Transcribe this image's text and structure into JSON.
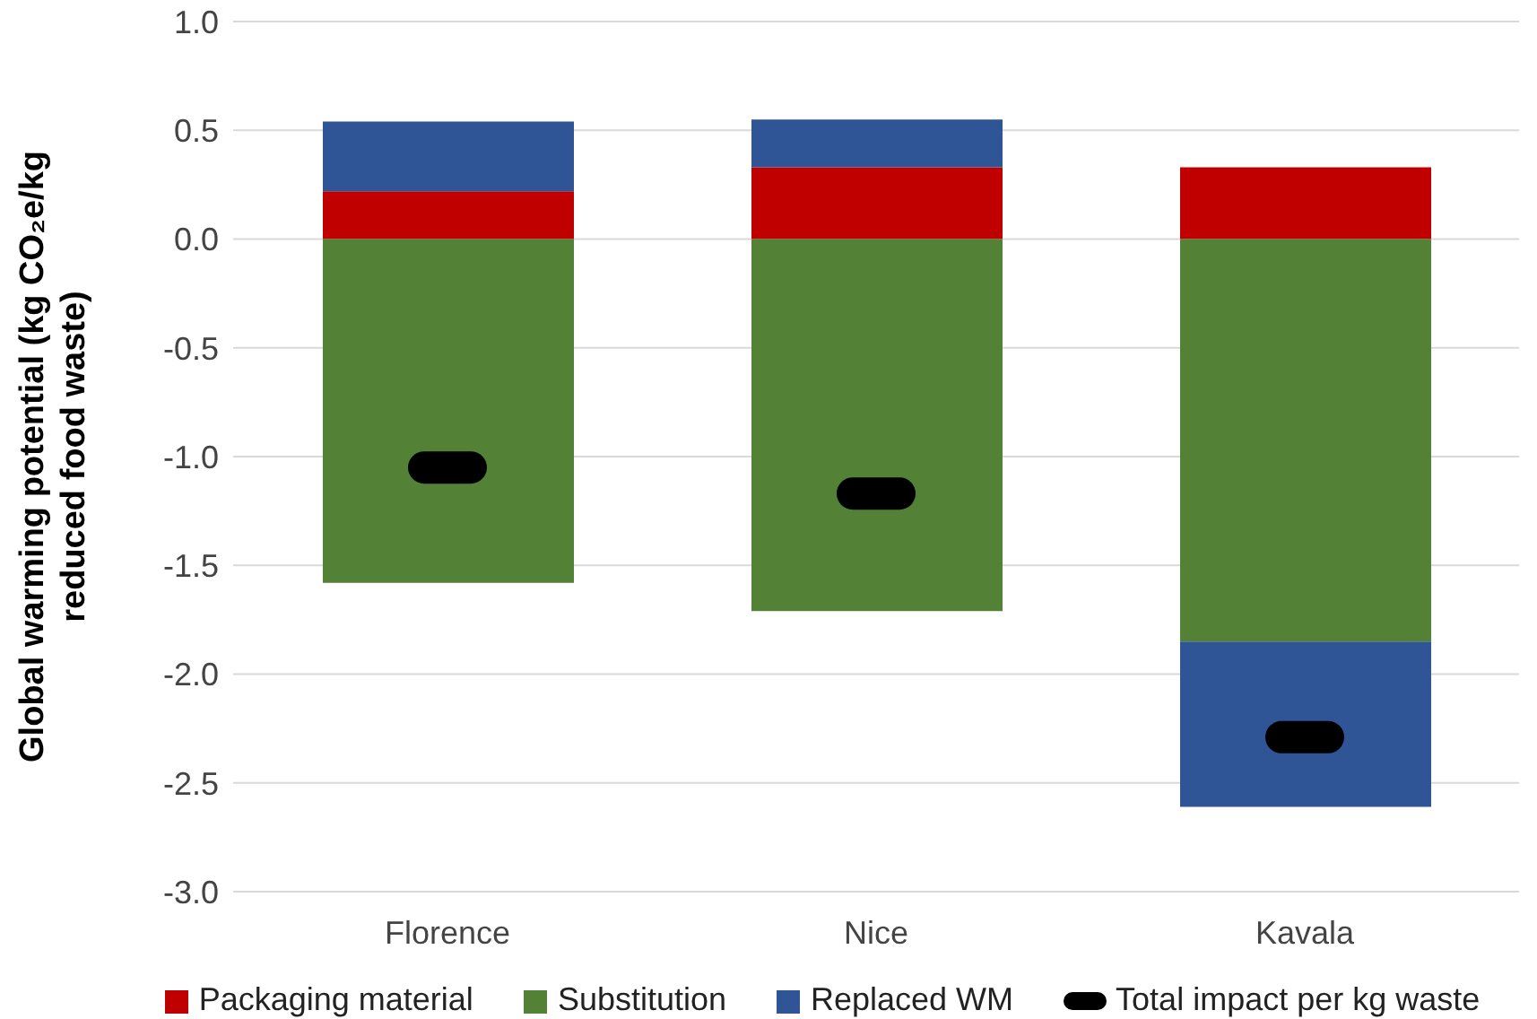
{
  "chart_data": {
    "type": "bar",
    "stacked": true,
    "ylabel": "Global warming potential (kg CO₂e/kg reduced food waste)",
    "categories": [
      "Florence",
      "Nice",
      "Kavala"
    ],
    "series": [
      {
        "name": "Packaging material",
        "color": "#c00000",
        "values": [
          0.22,
          0.33,
          0.33
        ]
      },
      {
        "name": "Substitution",
        "color": "#538135",
        "values": [
          -1.58,
          -1.71,
          -1.85
        ]
      },
      {
        "name": "Replaced WM",
        "color": "#2f5597",
        "values": [
          0.32,
          0.22,
          -0.76
        ]
      },
      {
        "name": "Total impact per kg waste",
        "type": "scatter",
        "color": "#000000",
        "values": [
          -1.05,
          -1.17,
          -2.29
        ]
      }
    ],
    "ylim": [
      -3,
      1
    ],
    "yticks": [
      {
        "value": -3,
        "label": "-3.0"
      },
      {
        "value": -2.5,
        "label": "-2.5"
      },
      {
        "value": -2,
        "label": "-2.0"
      },
      {
        "value": -1.5,
        "label": "-1.5"
      },
      {
        "value": -1,
        "label": "-1.0"
      },
      {
        "value": -0.5,
        "label": "-0.5"
      },
      {
        "value": 0,
        "label": "0.0"
      },
      {
        "value": 0.5,
        "label": "0.5"
      },
      {
        "value": 1,
        "label": "1.0"
      }
    ],
    "grid": "y",
    "legend": "bottom",
    "marker": "square"
  }
}
